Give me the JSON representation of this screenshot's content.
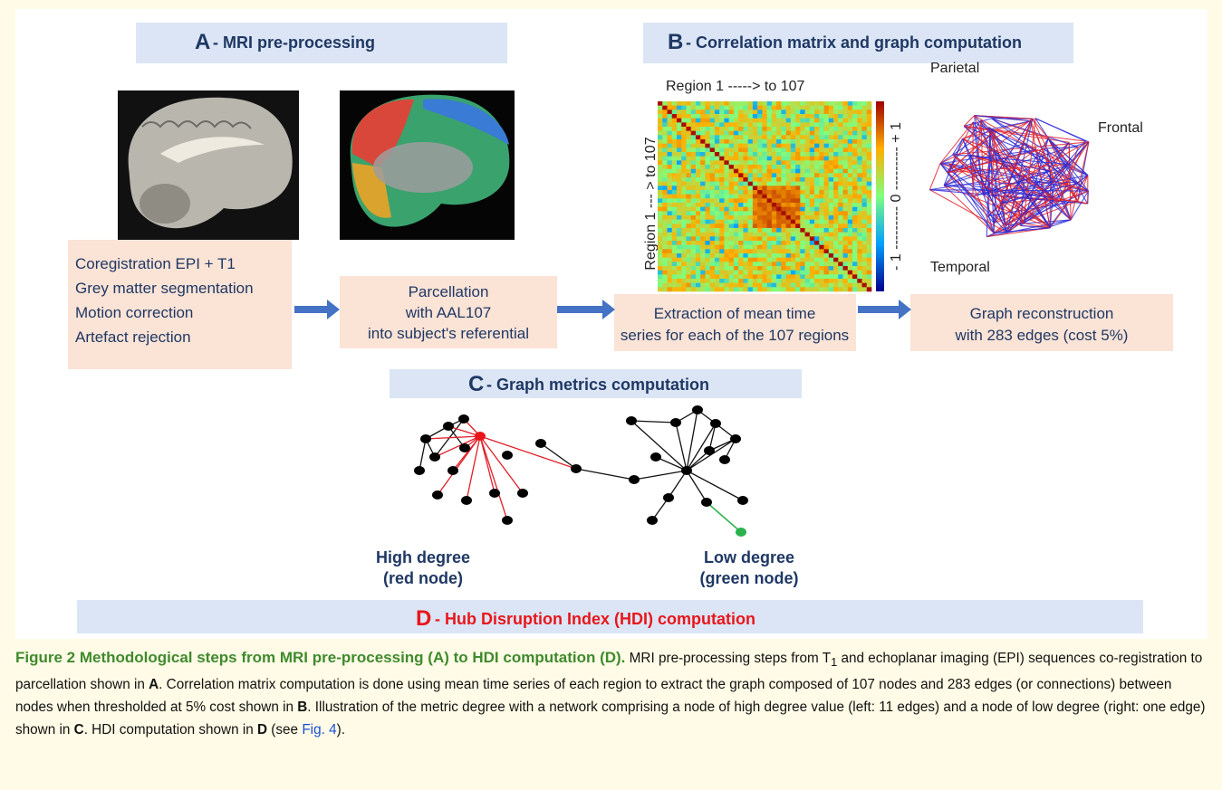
{
  "panels": {
    "a": {
      "letter": "A",
      "title": "- MRI pre-processing",
      "box1": [
        "Coregistration EPI + T1",
        "Grey matter segmentation",
        "Motion correction",
        "Artefact rejection"
      ],
      "box2": [
        "Parcellation",
        "with AAL107",
        "into subject's referential"
      ]
    },
    "b": {
      "letter": "B",
      "title": "- Correlation matrix and graph computation",
      "matrix_top_label": "Region 1 -----> to 107",
      "matrix_side_label": "Region 1 --- > to 107",
      "colorbar_label": "- 1 --------- 0 --------- + 1",
      "lobes": [
        "Parietal",
        "Frontal",
        "Temporal"
      ],
      "box3": [
        "Extraction of mean time",
        "series for each of the 107 regions"
      ],
      "box4": [
        "Graph reconstruction",
        "with 283 edges (cost 5%)"
      ]
    },
    "c": {
      "letter": "C",
      "title": "- Graph metrics computation",
      "high": [
        "High degree",
        "(red node)"
      ],
      "low": [
        "Low degree",
        "(green node)"
      ]
    },
    "d": {
      "letter": "D",
      "title": "- Hub Disruption Index (HDI) computation"
    }
  },
  "caption": {
    "title": "Figure 2 Methodological steps from MRI pre-processing (A) to HDI computation (D).",
    "parts": [
      " MRI pre-processing steps from T",
      "1",
      " and echoplanar imaging (EPI) sequences co-registration to parcellation shown in ",
      "A",
      ". Correlation matrix computation is done using mean time series of each region to extract the graph composed of 107 nodes and 283 edges (or connections) between nodes when thresholded at 5% cost shown in ",
      "B",
      ". Illustration of the metric degree with a network comprising a node of high degree value (left: 11 edges) and a node of low degree (right: one edge) shown in ",
      "C",
      ". HDI computation shown in ",
      "D",
      " (see ",
      "Fig. 4",
      ")."
    ]
  }
}
